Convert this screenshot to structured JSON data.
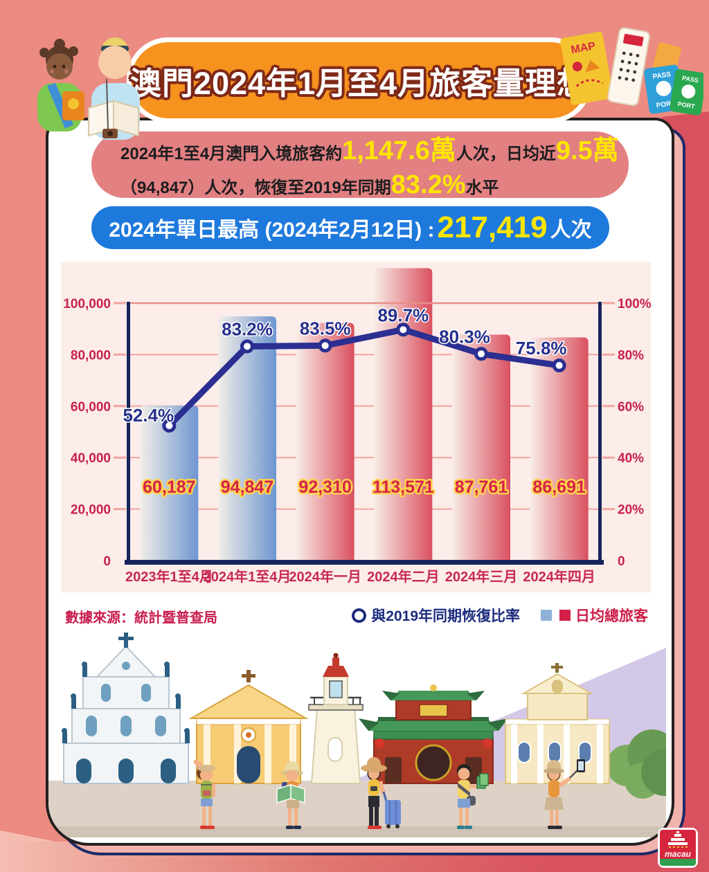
{
  "header": {
    "title": "澳門2024年1月至4月旅客量理想"
  },
  "summary": {
    "l1a": "2024年1至4月澳門入境旅客約",
    "l1b": "1,147.6萬",
    "l1c": "人次，日均近",
    "l1d": "9.5萬",
    "l2a": "（94,847）人次，恢復至2019年同期",
    "l2b": "83.2%",
    "l2c": "水平"
  },
  "highlight": {
    "h1": "2024年單日最高 (2024年2月12日) : ",
    "h2": "217,419",
    "h3": "人次"
  },
  "source": "數據來源：統計暨普查局",
  "legend": {
    "line": "與2019年同期恢復比率",
    "bars": "日均總旅客"
  },
  "decor": {
    "map_label": "MAP",
    "pass_label": "PASS",
    "port_label": "PORT",
    "logo_text": "macau"
  },
  "colors": {
    "background_salmon": "#EC8B81",
    "background_crimson": "#D8515F",
    "background_pink": "#F5BDB2",
    "banner_orange": "#F6921E",
    "stat_box": "#E28082",
    "highlight_blue": "#1E79DC",
    "accent_yellow": "#FFE600",
    "chart_panel": "#FCEDEA",
    "axis_navy": "#17255C",
    "line_navy": "#2B2F91",
    "tick_crimson": "#C81F4E",
    "bar_blue": "#6E96D0",
    "bar_red": "#DA5060",
    "value_label_fill": "#D6224C",
    "value_label_stroke": "#FFD24A",
    "gridline_pink": "#F2A49E"
  },
  "chart_data": {
    "type": "bar",
    "categories": [
      "2023年1至4月",
      "2024年1至4月",
      "2024年一月",
      "2024年二月",
      "2024年三月",
      "2024年四月"
    ],
    "series": [
      {
        "name": "日均總旅客",
        "type": "bar",
        "values": [
          60187,
          94847,
          92310,
          113571,
          87761,
          86691
        ],
        "value_labels": [
          "60,187",
          "94,847",
          "92,310",
          "113,571",
          "87,761",
          "86,691"
        ],
        "bar_palette": [
          "blue",
          "blue",
          "red",
          "red",
          "red",
          "red"
        ]
      },
      {
        "name": "與2019年同期恢復比率",
        "type": "line",
        "values": [
          52.4,
          83.2,
          83.5,
          89.7,
          80.3,
          75.8
        ],
        "point_labels": [
          "52.4%",
          "83.2%",
          "83.5%",
          "89.7%",
          "80.3%",
          "75.8%"
        ]
      }
    ],
    "left_axis": {
      "ticks": [
        "100,000",
        "80,000",
        "60,000",
        "40,000",
        "20,000",
        "0"
      ],
      "max": 100000
    },
    "right_axis": {
      "ticks": [
        "100%",
        "80%",
        "60%",
        "40%",
        "20%",
        "0"
      ],
      "max": 100
    },
    "grid": true,
    "legend_position": "bottom-right",
    "title": ""
  }
}
